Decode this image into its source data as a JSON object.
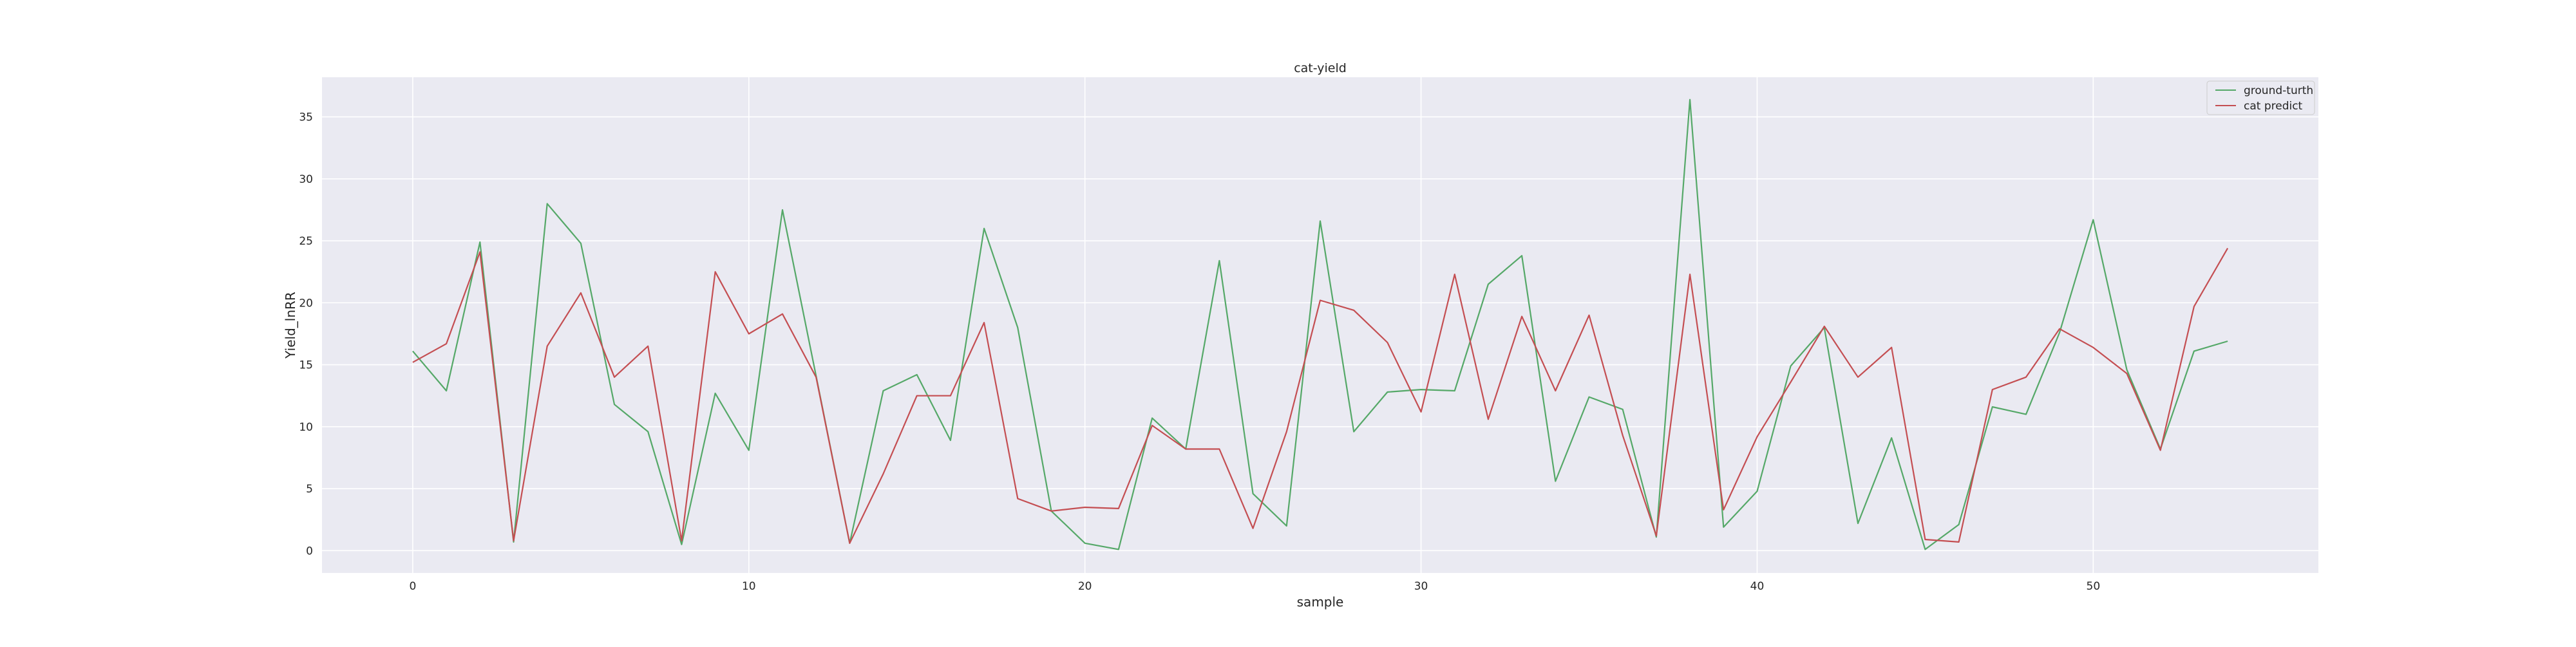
{
  "chart_data": {
    "type": "line",
    "title": "cat-yield",
    "xlabel": "sample",
    "ylabel": "Yield_lnRR",
    "xlim": [
      -2.7,
      56.7
    ],
    "ylim": [
      -1.8,
      38.2
    ],
    "xticks": [
      0,
      10,
      20,
      30,
      40,
      50
    ],
    "yticks": [
      0,
      5,
      10,
      15,
      20,
      25,
      30,
      35
    ],
    "grid": true,
    "legend_position": "top-right",
    "colors": {
      "background": "#eaeaf2",
      "grid": "#ffffff",
      "ground_truth": "#55a868",
      "prediction": "#c44e52"
    },
    "x": [
      0,
      1,
      2,
      3,
      4,
      5,
      6,
      7,
      8,
      9,
      10,
      11,
      12,
      13,
      14,
      15,
      16,
      17,
      18,
      19,
      20,
      21,
      22,
      23,
      24,
      25,
      26,
      27,
      28,
      29,
      30,
      31,
      32,
      33,
      34,
      35,
      36,
      37,
      38,
      39,
      40,
      41,
      42,
      43,
      44,
      45,
      46,
      47,
      48,
      49,
      50,
      51,
      52,
      53,
      54
    ],
    "series": [
      {
        "name": "ground-turth",
        "color": "#55a868",
        "values": [
          16.1,
          12.9,
          24.9,
          0.7,
          28.0,
          24.8,
          11.8,
          9.6,
          0.5,
          12.7,
          8.1,
          27.5,
          14.1,
          0.6,
          12.9,
          14.2,
          8.9,
          26.0,
          18.0,
          3.2,
          0.6,
          0.1,
          10.7,
          8.2,
          23.4,
          4.6,
          2.0,
          26.6,
          9.6,
          12.8,
          13.0,
          12.9,
          21.5,
          23.8,
          5.6,
          12.4,
          11.4,
          1.1,
          36.4,
          1.9,
          4.8,
          14.9,
          18.0,
          2.2,
          9.1,
          0.1,
          2.1,
          11.6,
          11.0,
          17.6,
          26.7,
          14.6,
          8.2,
          16.1,
          16.9
        ]
      },
      {
        "name": "cat predict",
        "color": "#c44e52",
        "values": [
          15.2,
          16.7,
          24.1,
          0.8,
          16.5,
          20.8,
          14.0,
          16.5,
          0.8,
          22.5,
          17.5,
          19.1,
          14.0,
          0.6,
          6.2,
          12.5,
          12.5,
          18.4,
          4.2,
          3.2,
          3.5,
          3.4,
          10.1,
          8.2,
          8.2,
          1.8,
          9.6,
          20.2,
          19.4,
          16.8,
          11.2,
          22.3,
          10.6,
          18.9,
          12.9,
          19.0,
          9.3,
          1.2,
          22.3,
          3.3,
          9.2,
          13.6,
          18.1,
          14.0,
          16.4,
          0.9,
          0.7,
          13.0,
          14.0,
          17.9,
          16.4,
          14.3,
          8.1,
          19.7,
          24.4
        ]
      }
    ]
  }
}
